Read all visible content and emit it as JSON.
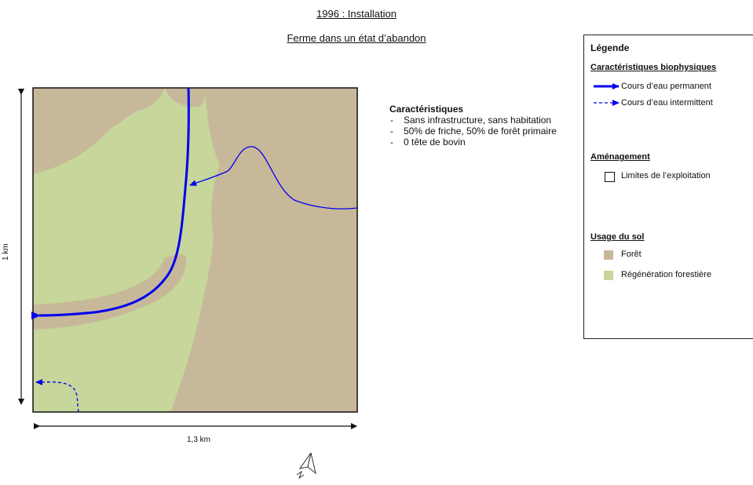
{
  "titles": {
    "line1": "1996 : Installation",
    "line2": "Ferme dans un état d’abandon"
  },
  "scale": {
    "horizontal": "1,3 km",
    "vertical": "1 km"
  },
  "characteristics": {
    "title": "Caractéristiques",
    "items": [
      "Sans infrastructure, sans habitation",
      "50% de friche, 50% de forêt primaire",
      "0 tête de bovin"
    ]
  },
  "legend": {
    "title": "Légende",
    "section_biophysical": "Caractéristiques biophysiques",
    "permanent_stream": "Cours d’eau permanent",
    "intermittent_stream": "Cours d’eau intermittent",
    "section_planning": "Aménagement",
    "farm_limits": "Limites de l’exploitation",
    "section_land_use": "Usage du sol",
    "forest": "Forêt",
    "regeneration": "Régénération forestière"
  },
  "colors": {
    "forest": "#c8b89a",
    "regeneration": "#c7d69a",
    "stream": "#0000ee"
  },
  "icons": {
    "north_arrow": "north-arrow-icon"
  }
}
